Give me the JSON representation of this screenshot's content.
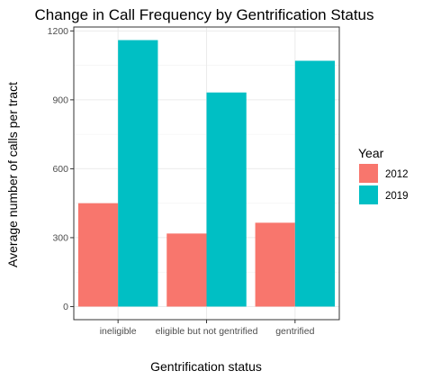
{
  "chart_data": {
    "type": "bar",
    "title": "Change in Call Frequency by Gentrification Status",
    "xlabel": "Gentrification status",
    "ylabel": "Average number of calls per tract",
    "categories": [
      "ineligible",
      "eligible but not gentrified",
      "gentrified"
    ],
    "series": [
      {
        "name": "2012",
        "color": "#F8766D",
        "values": [
          450,
          318,
          365
        ]
      },
      {
        "name": "2019",
        "color": "#00BFC4",
        "values": [
          1160,
          932,
          1070
        ]
      }
    ],
    "yticks": [
      0,
      300,
      600,
      900,
      1200
    ],
    "ylim": [
      -57,
      1217
    ],
    "grid": true,
    "legend": {
      "title": "Year",
      "position": "right"
    }
  }
}
